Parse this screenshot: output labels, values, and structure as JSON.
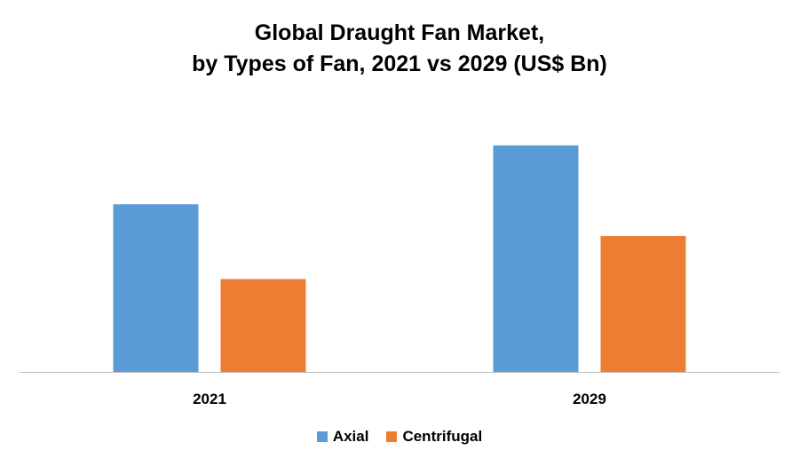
{
  "chart_data": {
    "type": "bar",
    "title_lines": [
      "Global Draught Fan Market,",
      "by Types of Fan, 2021 vs 2029 (US$ Bn)"
    ],
    "categories": [
      "2021",
      "2029"
    ],
    "series": [
      {
        "name": "Axial",
        "color": "#5B9BD5",
        "values": [
          7.4,
          10.0
        ]
      },
      {
        "name": "Centrifugal",
        "color": "#ED7D31",
        "values": [
          4.1,
          6.0
        ]
      }
    ],
    "ylim": [
      0,
      12.5
    ],
    "grid": false,
    "legend_position": "bottom"
  }
}
